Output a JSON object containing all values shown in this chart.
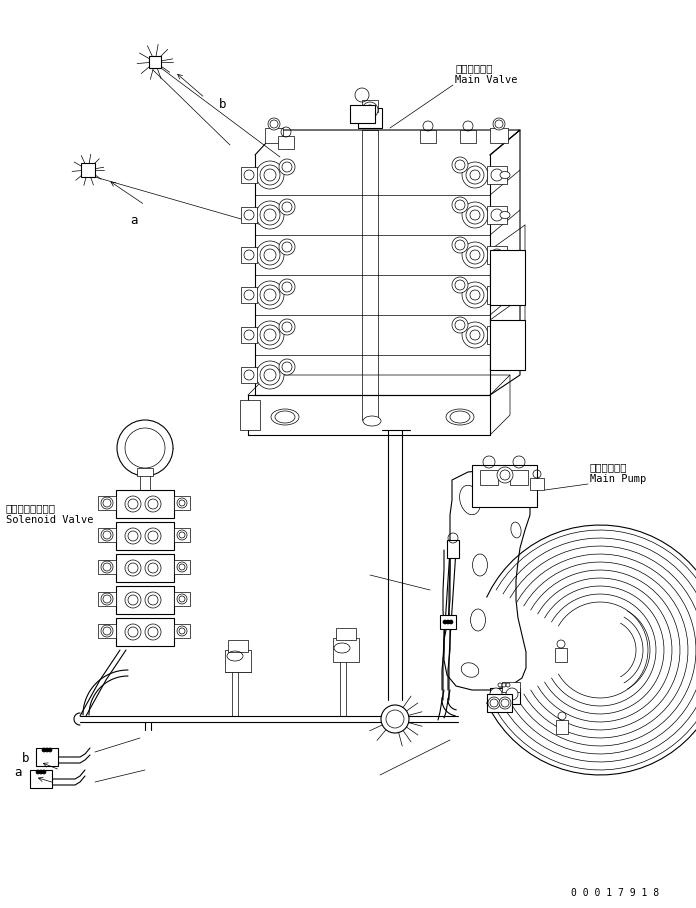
{
  "background_color": "#ffffff",
  "line_color": "#000000",
  "fig_width": 6.96,
  "fig_height": 9.08,
  "dpi": 100,
  "part_number": "0 0 0 1 7 9 1 8",
  "labels": {
    "main_valve_jp": "メインバルブ",
    "main_valve_en": "Main Valve",
    "main_pump_jp": "メインポンプ",
    "main_pump_en": "Main Pump",
    "solenoid_valve_jp": "ソレノイドバルブ",
    "solenoid_valve_en": "Solenoid Valve",
    "label_a_top": "a",
    "label_b_top": "b",
    "label_a_bot": "a",
    "label_b_bot": "b"
  },
  "annotation_font_size": 7.5,
  "label_font_size": 9
}
